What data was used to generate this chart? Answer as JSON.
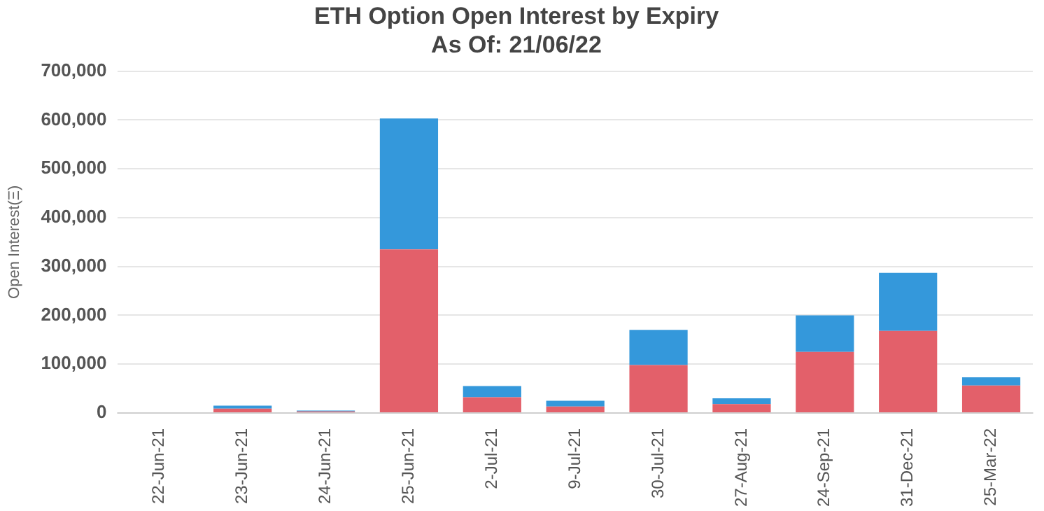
{
  "chart_data": {
    "type": "bar",
    "title": "ETH Option Open Interest by Expiry",
    "subtitle": "As Of: 21/06/22",
    "ylabel": "Open Interest(Ξ)",
    "categories": [
      "22-Jun-21",
      "23-Jun-21",
      "24-Jun-21",
      "25-Jun-21",
      "2-Jul-21",
      "9-Jul-21",
      "30-Jul-21",
      "27-Aug-21",
      "24-Sep-21",
      "31-Dec-21",
      "25-Mar-22"
    ],
    "stacked": true,
    "series": [
      {
        "color": "#e3606a",
        "values": [
          0,
          9000,
          3000,
          335000,
          32000,
          13000,
          98000,
          18000,
          125000,
          168000,
          56000
        ]
      },
      {
        "color": "#3498db",
        "values": [
          0,
          6000,
          2000,
          268000,
          23000,
          12000,
          72000,
          12000,
          75000,
          119000,
          17000
        ]
      }
    ],
    "ylim": [
      0,
      700000
    ],
    "yticks": [
      0,
      {
        "value": 100000,
        "label": "100,000"
      },
      {
        "value": 200000,
        "label": "200,000"
      },
      {
        "value": 300000,
        "label": "300,000"
      },
      {
        "value": 400000,
        "label": "400,000"
      },
      {
        "value": 500000,
        "label": "500,000"
      },
      {
        "value": 600000,
        "label": "600,000"
      },
      {
        "value": 700000,
        "label": "700,000"
      }
    ],
    "grid": "y"
  }
}
